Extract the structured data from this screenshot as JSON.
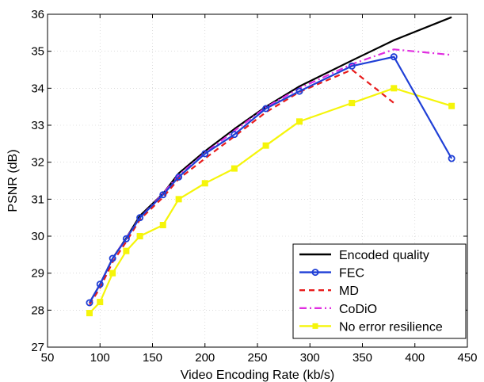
{
  "chart_data": {
    "type": "line",
    "title": "",
    "xlabel": "Video Encoding Rate (kb/s)",
    "ylabel": "PSNR (dB)",
    "xlim": [
      50,
      450
    ],
    "ylim": [
      27,
      36
    ],
    "xticks": [
      50,
      100,
      150,
      200,
      250,
      300,
      350,
      400,
      450
    ],
    "yticks": [
      27,
      28,
      29,
      30,
      31,
      32,
      33,
      34,
      35,
      36
    ],
    "grid": true,
    "legend_position": "bottom-right",
    "series": [
      {
        "name": "Encoded quality",
        "color": "#000000",
        "style": "solid",
        "marker": "none",
        "x": [
          90,
          100,
          112,
          125,
          138,
          160,
          175,
          200,
          228,
          258,
          290,
          340,
          380,
          435
        ],
        "y": [
          28.2,
          28.7,
          29.4,
          29.95,
          30.55,
          31.15,
          31.7,
          32.3,
          32.9,
          33.5,
          34.05,
          34.75,
          35.3,
          35.92
        ]
      },
      {
        "name": "FEC",
        "color": "#1f3fd6",
        "style": "solid",
        "marker": "circle",
        "x": [
          90,
          100,
          112,
          125,
          138,
          160,
          175,
          200,
          228,
          258,
          290,
          340,
          380,
          435
        ],
        "y": [
          28.2,
          28.7,
          29.4,
          29.93,
          30.5,
          31.12,
          31.6,
          32.23,
          32.75,
          33.45,
          33.92,
          34.6,
          34.85,
          32.1
        ]
      },
      {
        "name": "MD",
        "color": "#e81c1c",
        "style": "dashed",
        "marker": "none",
        "x": [
          90,
          100,
          112,
          125,
          138,
          160,
          175,
          200,
          228,
          258,
          290,
          340,
          380
        ],
        "y": [
          28.15,
          28.6,
          29.3,
          29.85,
          30.45,
          31.05,
          31.55,
          32.1,
          32.7,
          33.35,
          33.9,
          34.5,
          33.6
        ]
      },
      {
        "name": "CoDiO",
        "color": "#e02ee0",
        "style": "dashdot",
        "marker": "none",
        "x": [
          90,
          100,
          112,
          125,
          138,
          160,
          175,
          200,
          228,
          258,
          290,
          340,
          380,
          435
        ],
        "y": [
          28.2,
          28.7,
          29.4,
          29.95,
          30.5,
          31.15,
          31.65,
          32.25,
          32.85,
          33.48,
          34.0,
          34.65,
          35.05,
          34.9
        ]
      },
      {
        "name": "No error resilience",
        "color": "#f5f50a",
        "style": "solid",
        "marker": "square",
        "x": [
          90,
          100,
          112,
          125,
          138,
          160,
          175,
          200,
          228,
          258,
          290,
          340,
          380,
          435
        ],
        "y": [
          27.92,
          28.22,
          29.0,
          29.6,
          30.0,
          30.3,
          31.0,
          31.43,
          31.83,
          32.45,
          33.1,
          33.6,
          34.0,
          33.52
        ]
      }
    ]
  }
}
